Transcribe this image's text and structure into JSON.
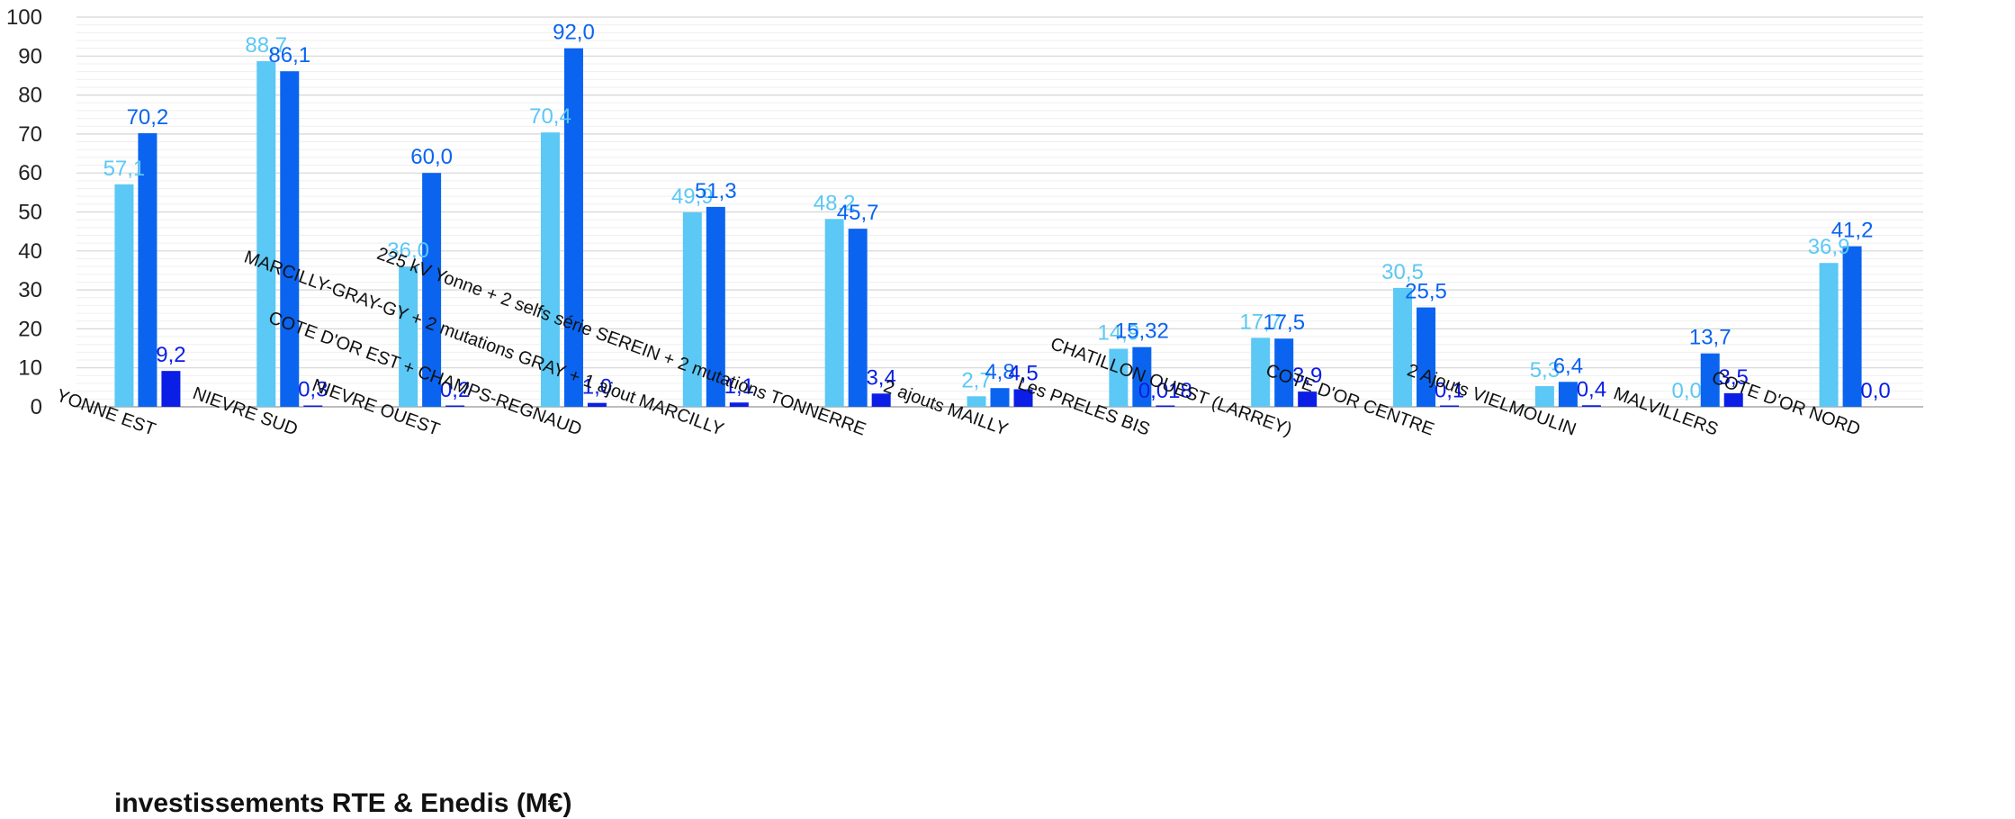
{
  "chart_data": {
    "type": "bar",
    "title": "investissements RTE & Enedis (M€)",
    "ylim": [
      0,
      100
    ],
    "yticks": [
      0,
      10,
      20,
      30,
      40,
      50,
      60,
      70,
      80,
      90,
      100
    ],
    "grid": true,
    "categories": [
      "YONNE EST",
      "NIEVRE SUD",
      "NIEVRE OUEST",
      "COTE D'OR EST + CHAMPS-REGNAUD",
      "MARCILLY-GRAY-GY + 2 mutations GRAY + 1 ajout MARCILLY",
      "225 kV Yonne + 2 selfs série SEREIN + 2 mutations TONNERRE",
      "2 ajouts MAILLY",
      "Les PRELES BIS",
      "CHATILLON OUEST (LARREY)",
      "COTE D'OR CENTRE",
      "2 Ajouts VIELMOULIN",
      "MALVILLERS",
      "COTE D'OR NORD"
    ],
    "series": [
      {
        "color": "#5bc8f5",
        "values": [
          57.1,
          88.7,
          36.0,
          70.4,
          49.9,
          48.2,
          2.7,
          14.9,
          17.7,
          30.5,
          5.3,
          0.0,
          36.9
        ],
        "labels": [
          "57,1",
          "88,7",
          "36,0",
          "70,4",
          "49,9",
          "48,2",
          "2,7",
          "14,9",
          "17,7",
          "30,5",
          "5,3",
          "0,0",
          "36,9"
        ]
      },
      {
        "color": "#0a64f0",
        "values": [
          70.2,
          86.1,
          60.0,
          92.0,
          51.3,
          45.7,
          4.8,
          15.32,
          17.5,
          25.5,
          6.4,
          13.7,
          41.2
        ],
        "labels": [
          "70,2",
          "86,1",
          "60,0",
          "92,0",
          "51,3",
          "45,7",
          "4,8",
          "15,32",
          "17,5",
          "25,5",
          "6,4",
          "13,7",
          "41,2"
        ]
      },
      {
        "color": "#0a1ee6",
        "values": [
          9.2,
          0.3,
          0.2,
          1.0,
          1.1,
          3.4,
          4.5,
          0.018,
          3.9,
          0.1,
          0.4,
          3.5,
          0.0
        ],
        "labels": [
          "9,2",
          "0,3",
          "0,2",
          "1,0",
          "1,1",
          "3,4",
          "4,5",
          "0,018",
          "3,9",
          "0,1",
          "0,4",
          "3,5",
          "0,0"
        ]
      }
    ]
  }
}
